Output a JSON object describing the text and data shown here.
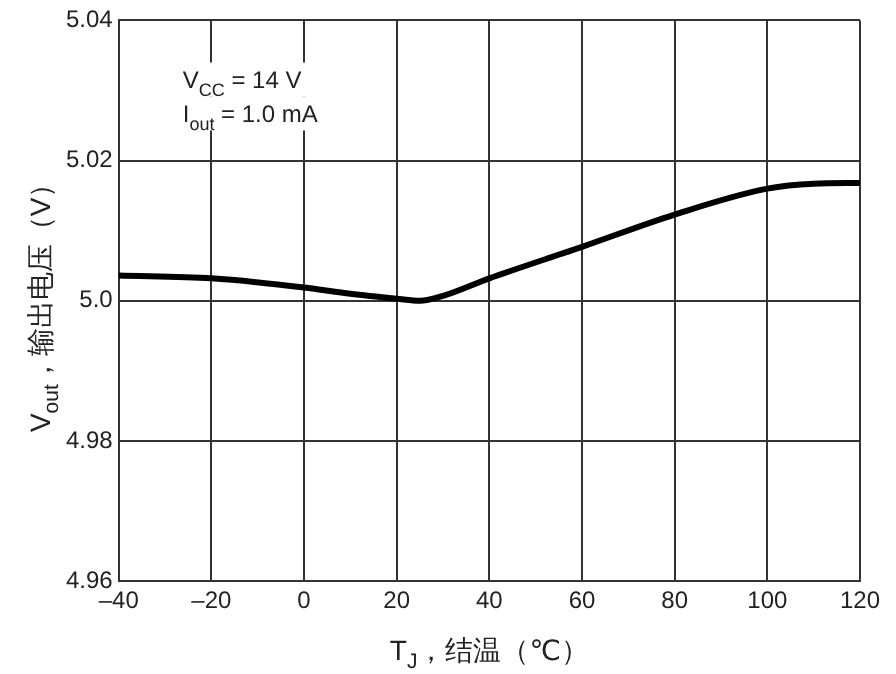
{
  "chart_data": {
    "type": "line",
    "xlabel": "T$_{J}$，结温（℃）",
    "ylabel": "V$_{out}$，输出电压（V）",
    "annotations": [
      "V$_{CC}$ = 14 V",
      "I$_{out}$ = 1.0 mA"
    ],
    "x": [
      -40,
      -20,
      0,
      10,
      20,
      25,
      30,
      40,
      60,
      80,
      100,
      110,
      120
    ],
    "series": [
      {
        "color": "#000000",
        "values": [
          5.0036,
          5.0032,
          5.0019,
          5.001,
          5.0003,
          5.0,
          5.0007,
          5.0032,
          5.0077,
          5.0123,
          5.016,
          5.0167,
          5.0168
        ]
      }
    ],
    "xlim": [
      -40,
      120
    ],
    "xticks": [
      {
        "value": -40,
        "label": "–40"
      },
      {
        "value": -20,
        "label": "–20"
      },
      0,
      20,
      40,
      60,
      80,
      100,
      120
    ],
    "ylim": [
      4.96,
      5.04
    ],
    "yticks": [
      4.96,
      4.98,
      {
        "value": 5,
        "label": "5.0"
      },
      5.02,
      5.04
    ],
    "grid": true,
    "legend": false,
    "marker": "none",
    "line_style": "solid"
  }
}
